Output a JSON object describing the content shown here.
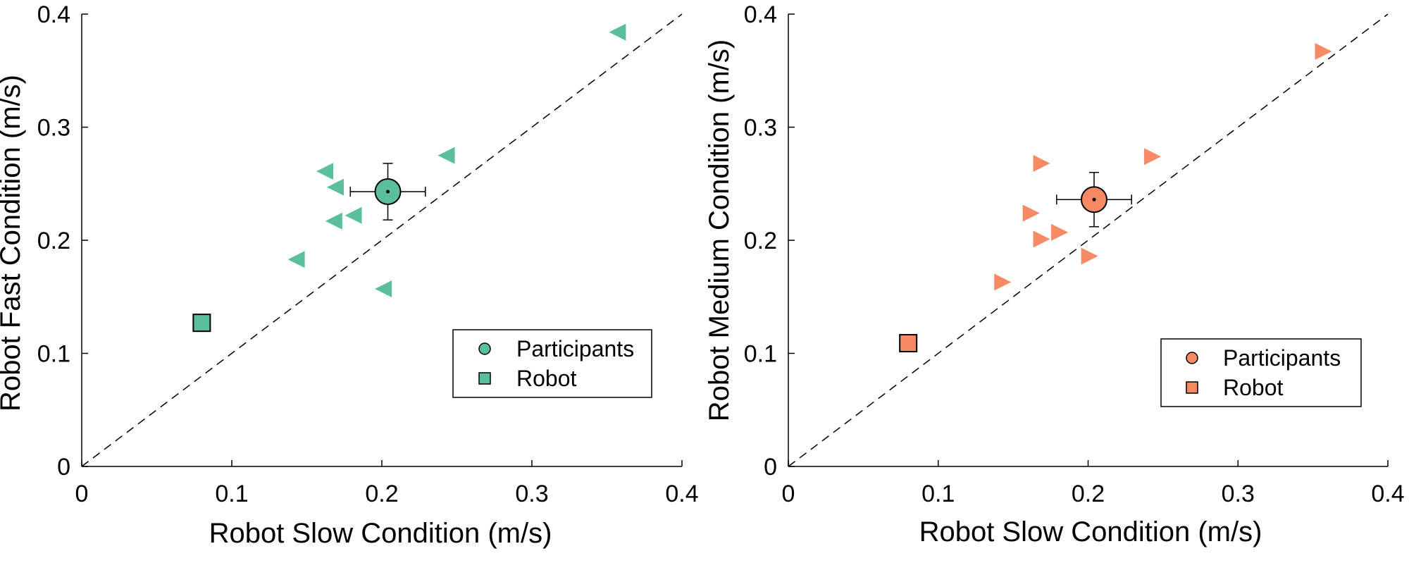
{
  "chart_data": [
    {
      "type": "scatter",
      "xlabel": "Robot Slow Condition (m/s)",
      "ylabel": "Robot Fast Condition (m/s)",
      "xlim": [
        0,
        0.4
      ],
      "ylim": [
        0,
        0.4
      ],
      "xticks": [
        "0",
        "0.1",
        "0.2",
        "0.3",
        "0.4"
      ],
      "yticks": [
        "0",
        "0.1",
        "0.2",
        "0.3",
        "0.4"
      ],
      "tick_values": [
        0,
        0.1,
        0.2,
        0.3,
        0.4
      ],
      "color": "#5bbf9c",
      "marker": "triangle-left",
      "individuals": [
        {
          "x": 0.357,
          "y": 0.384
        },
        {
          "x": 0.162,
          "y": 0.261
        },
        {
          "x": 0.169,
          "y": 0.247
        },
        {
          "x": 0.243,
          "y": 0.275
        },
        {
          "x": 0.168,
          "y": 0.217
        },
        {
          "x": 0.181,
          "y": 0.222
        },
        {
          "x": 0.143,
          "y": 0.183
        },
        {
          "x": 0.201,
          "y": 0.157
        }
      ],
      "participants_mean": {
        "x": 0.204,
        "y": 0.243,
        "xerr": 0.025,
        "yerr": 0.025
      },
      "robot": {
        "x": 0.08,
        "y": 0.127
      },
      "reference_line": "y = x",
      "legend": {
        "position": "lower-right",
        "entries": [
          "Participants",
          "Robot"
        ]
      }
    },
    {
      "type": "scatter",
      "xlabel": "Robot Slow Condition (m/s)",
      "ylabel": "Robot Medium Condition (m/s)",
      "xlim": [
        0,
        0.4
      ],
      "ylim": [
        0,
        0.4
      ],
      "xticks": [
        "0",
        "0.1",
        "0.2",
        "0.3",
        "0.4"
      ],
      "yticks": [
        "0",
        "0.1",
        "0.2",
        "0.3",
        "0.4"
      ],
      "tick_values": [
        0,
        0.1,
        0.2,
        0.3,
        0.4
      ],
      "color": "#f78a64",
      "marker": "triangle-right",
      "individuals": [
        {
          "x": 0.357,
          "y": 0.367
        },
        {
          "x": 0.169,
          "y": 0.268
        },
        {
          "x": 0.243,
          "y": 0.274
        },
        {
          "x": 0.162,
          "y": 0.224
        },
        {
          "x": 0.169,
          "y": 0.201
        },
        {
          "x": 0.181,
          "y": 0.207
        },
        {
          "x": 0.201,
          "y": 0.186
        },
        {
          "x": 0.143,
          "y": 0.163
        }
      ],
      "participants_mean": {
        "x": 0.204,
        "y": 0.236,
        "xerr": 0.025,
        "yerr": 0.024
      },
      "robot": {
        "x": 0.08,
        "y": 0.109
      },
      "reference_line": "y = x",
      "legend": {
        "position": "lower-right",
        "entries": [
          "Participants",
          "Robot"
        ]
      }
    }
  ]
}
